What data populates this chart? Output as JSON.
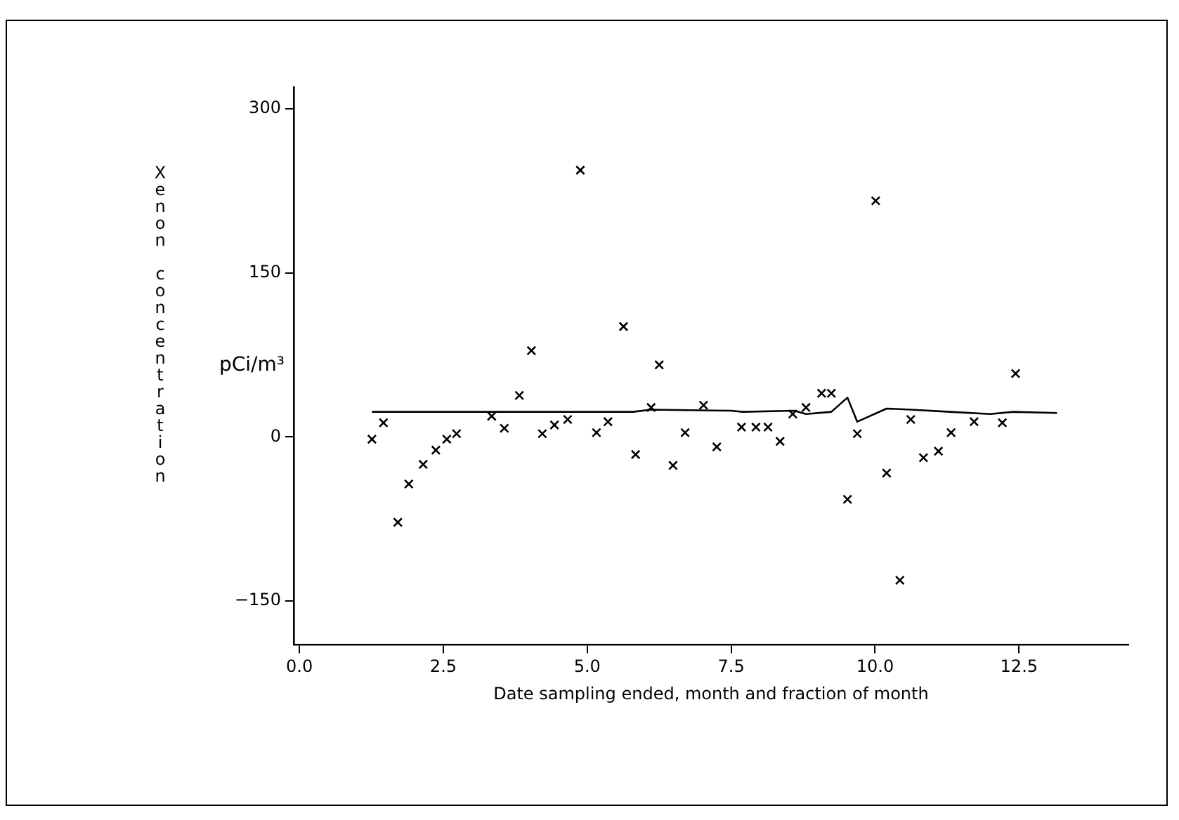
{
  "chart_data": {
    "type": "scatter",
    "xlabel": "Date sampling ended, month and fraction of month",
    "ylabel": "Xenon concentration",
    "annotations": [
      "pCi/m³"
    ],
    "xlim": [
      -0.1,
      14.4
    ],
    "ylim": [
      -190,
      320
    ],
    "xticks": [
      {
        "value": 0,
        "label": "0.0"
      },
      {
        "value": 2.5,
        "label": "2.5"
      },
      {
        "value": 5,
        "label": "5.0"
      },
      {
        "value": 7.5,
        "label": "7.5"
      },
      {
        "value": 10,
        "label": "10.0"
      },
      {
        "value": 12.5,
        "label": "12.5"
      }
    ],
    "yticks": [
      {
        "value": -150,
        "label": "−150"
      },
      0,
      150,
      300
    ],
    "grid": false,
    "legend": false,
    "series": [
      {
        "color": "#000000",
        "marker": "cross",
        "x": [
          1.26,
          1.46,
          1.71,
          1.9,
          2.15,
          2.37,
          2.56,
          2.73,
          3.34,
          3.56,
          3.82,
          4.03,
          4.22,
          4.43,
          4.66,
          4.88,
          5.16,
          5.36,
          5.63,
          5.84,
          6.11,
          6.25,
          6.49,
          6.7,
          7.02,
          7.25,
          7.68,
          7.93,
          8.14,
          8.35,
          8.57,
          8.8,
          9.07,
          9.24,
          9.52,
          9.69,
          10.01,
          10.2,
          10.43,
          10.62,
          10.84,
          11.1,
          11.32,
          11.72,
          12.21,
          12.44
        ],
        "values": [
          -2,
          13,
          -78,
          -43,
          -25,
          -12,
          -2,
          3,
          19,
          8,
          38,
          79,
          3,
          11,
          16,
          244,
          4,
          14,
          101,
          -16,
          27,
          66,
          -26,
          4,
          29,
          -9,
          9,
          9,
          9,
          -4,
          21,
          27,
          40,
          40,
          -57,
          3,
          216,
          -33,
          -131,
          16,
          -19,
          -13,
          4,
          14,
          13,
          58
        ]
      },
      {
        "type": "line",
        "color": "#000000",
        "marker": "none",
        "line_style": "solid",
        "x": [
          1.26,
          5.8,
          6.1,
          7.5,
          7.7,
          8.6,
          8.8,
          9.24,
          9.52,
          9.69,
          10.2,
          10.62,
          11.3,
          12.0,
          12.4,
          13.16
        ],
        "values": [
          23,
          23,
          25,
          24,
          23,
          24,
          21,
          23,
          36,
          14,
          26,
          25,
          23,
          21,
          23,
          22
        ]
      }
    ]
  }
}
